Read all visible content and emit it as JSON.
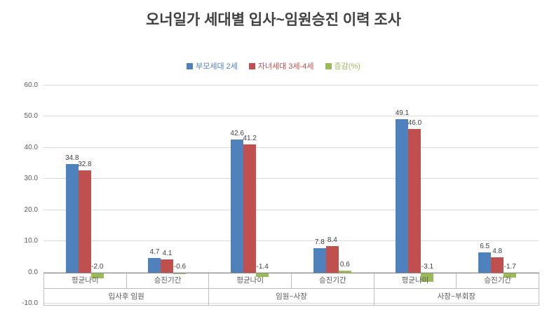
{
  "chart_data": {
    "type": "bar",
    "title": "오너일가 세대별 입사~임원승진 이력 조사",
    "ylim": [
      -10,
      60
    ],
    "ytick_step": 10,
    "grid": true,
    "legend_position": "top",
    "series": [
      {
        "name": "부모세대 2세",
        "color": "#4F81BD"
      },
      {
        "name": "자녀세대 3세-4세",
        "color": "#C0504D"
      },
      {
        "name": "증감(%)",
        "color": "#9BBB59"
      }
    ],
    "groups": [
      {
        "label": "입사후 임원",
        "clusters": [
          {
            "label": "평균나이",
            "values": [
              34.8,
              32.8,
              -2.0
            ]
          },
          {
            "label": "승진기간",
            "values": [
              4.7,
              4.1,
              -0.6
            ]
          }
        ]
      },
      {
        "label": "임원~사장",
        "clusters": [
          {
            "label": "평균나이",
            "values": [
              42.6,
              41.2,
              -1.4
            ]
          },
          {
            "label": "승진기간",
            "values": [
              7.8,
              8.4,
              0.6
            ]
          }
        ]
      },
      {
        "label": "사장~부회장",
        "clusters": [
          {
            "label": "평균나이",
            "values": [
              49.1,
              46.0,
              -3.1
            ]
          },
          {
            "label": "승진기간",
            "values": [
              6.5,
              4.8,
              -1.7
            ]
          }
        ]
      }
    ]
  }
}
